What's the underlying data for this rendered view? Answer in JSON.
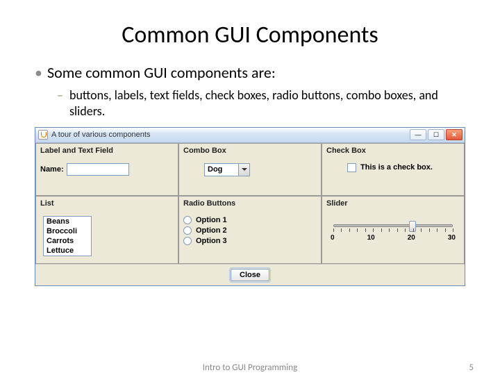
{
  "slide": {
    "title": "Common GUI Components",
    "bullet1": "Some common GUI components are:",
    "bullet2": "buttons, labels, text fields, check boxes, radio buttons, combo boxes, and sliders."
  },
  "window": {
    "title": "A tour of various components",
    "sections": {
      "label_text": {
        "title": "Label and Text Field",
        "name_label": "Name:"
      },
      "combo": {
        "title": "Combo Box",
        "value": "Dog"
      },
      "check": {
        "title": "Check Box",
        "label": "This is a check box."
      },
      "list": {
        "title": "List",
        "items": [
          "Beans",
          "Broccoli",
          "Carrots",
          "Lettuce"
        ]
      },
      "radio": {
        "title": "Radio Buttons",
        "options": [
          "Option 1",
          "Option 2",
          "Option 3"
        ]
      },
      "slider": {
        "title": "Slider",
        "min": 0,
        "max": 30,
        "value": 20,
        "labels": [
          "0",
          "10",
          "20",
          "30"
        ],
        "minor_tick_count": 16
      }
    },
    "close_button": "Close"
  },
  "footer": {
    "text": "Intro to GUI Programming",
    "page": "5"
  },
  "colors": {
    "panel_bg": "#ece9d8",
    "input_border": "#7f9db9",
    "titlebar_start": "#ffffff",
    "titlebar_end": "#c5d9ef"
  }
}
